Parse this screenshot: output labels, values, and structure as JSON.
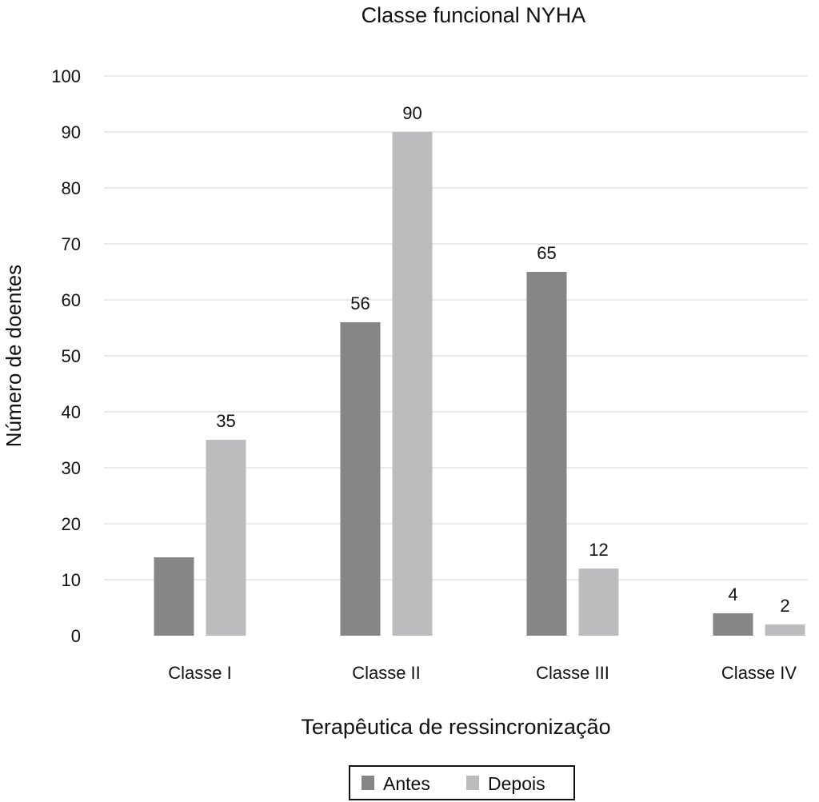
{
  "chart_data": {
    "type": "bar",
    "title": "Classe funcional NYHA",
    "xlabel": "Terapêutica de ressincronização",
    "ylabel": "Número de doentes",
    "ylim": [
      0,
      100
    ],
    "yticks": [
      0,
      10,
      20,
      30,
      40,
      50,
      60,
      70,
      80,
      90,
      100
    ],
    "grid": true,
    "legend_position": "bottom",
    "categories": [
      "Classe I",
      "Classe II",
      "Classe III",
      "Classe IV"
    ],
    "series": [
      {
        "name": "Antes",
        "color": "#868686",
        "values": [
          14,
          56,
          65,
          4
        ],
        "labels_shown": [
          false,
          true,
          true,
          true
        ]
      },
      {
        "name": "Depois",
        "color": "#bcbcbe",
        "values": [
          35,
          90,
          12,
          2
        ],
        "labels_shown": [
          true,
          true,
          true,
          true
        ]
      }
    ]
  }
}
